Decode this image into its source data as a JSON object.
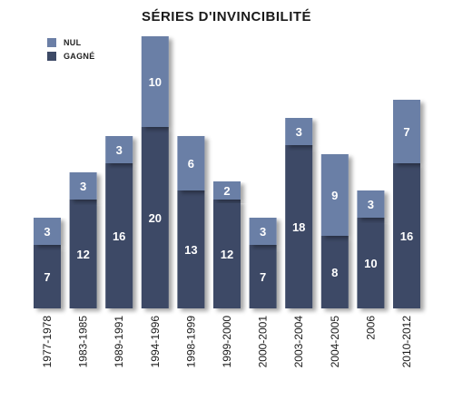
{
  "chart_data": {
    "type": "bar",
    "stacked": true,
    "title": "SÉRIES D'INVINCIBILITÉ",
    "categories": [
      "1977-1978",
      "1983-1985",
      "1989-1991",
      "1994-1996",
      "1998-1999",
      "1999-2000",
      "2000-2001",
      "2003-2004",
      "2004-2005",
      "2006",
      "2010-2012"
    ],
    "series": [
      {
        "name": "GAGNÉ",
        "color": "#3d4a66",
        "values": [
          7,
          12,
          16,
          20,
          13,
          12,
          7,
          18,
          8,
          10,
          16
        ]
      },
      {
        "name": "NUL",
        "color": "#6b7fa6",
        "values": [
          3,
          3,
          3,
          10,
          6,
          2,
          3,
          3,
          9,
          3,
          7
        ]
      }
    ],
    "ylim": [
      0,
      30
    ],
    "grid": false,
    "legend_position": "top-left",
    "xlabel": "",
    "ylabel": ""
  }
}
